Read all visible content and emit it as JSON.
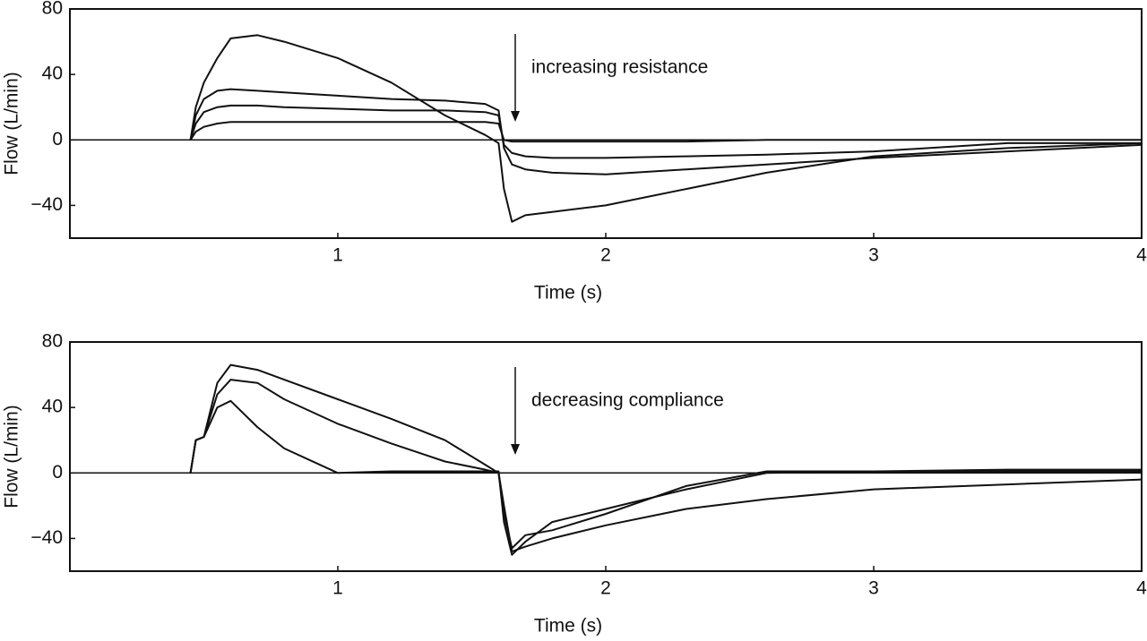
{
  "chart_data": [
    {
      "type": "line",
      "xlabel": "Time (s)",
      "ylabel": "Flow (L/min)",
      "annotation": "increasing resistance",
      "zero_line": true,
      "x": [
        0.45,
        0.47,
        0.5,
        0.55,
        0.6,
        0.7,
        0.8,
        1.0,
        1.2,
        1.4,
        1.55,
        1.6,
        1.62,
        1.65,
        1.7,
        1.8,
        2.0,
        2.3,
        2.6,
        3.0,
        3.5,
        4.0
      ],
      "xlim": [
        0,
        4
      ],
      "xticks": [
        1,
        2,
        3,
        4
      ],
      "ylim": [
        -60,
        80
      ],
      "yticks": [
        80,
        40,
        0,
        {
          "value": -40,
          "label": "−40"
        }
      ],
      "series": [
        {
          "color": "#111111",
          "values": [
            0,
            20,
            35,
            50,
            62,
            64,
            60,
            50,
            35,
            15,
            3,
            -2,
            -30,
            -50,
            -46,
            -44,
            -40,
            -30,
            -20,
            -10,
            -5,
            -2
          ]
        },
        {
          "color": "#111111",
          "values": [
            0,
            15,
            25,
            30,
            31,
            30,
            29,
            27,
            25,
            24,
            22,
            18,
            -5,
            -15,
            -18,
            -20,
            -21,
            -18,
            -15,
            -11,
            -7,
            -3
          ]
        },
        {
          "color": "#111111",
          "values": [
            0,
            10,
            17,
            20,
            21,
            21,
            20,
            19,
            18,
            18,
            17,
            15,
            -3,
            -8,
            -10,
            -11,
            -11,
            -10,
            -9,
            -7,
            -2,
            -2
          ]
        },
        {
          "color": "#111111",
          "values": [
            0,
            5,
            8,
            10,
            11,
            11,
            11,
            11,
            11,
            11,
            11,
            10,
            0,
            -1,
            -1,
            -1,
            -1,
            -1,
            0,
            0,
            0,
            0
          ]
        }
      ]
    },
    {
      "type": "line",
      "xlabel": "Time (s)",
      "ylabel": "Flow (L/min)",
      "annotation": "decreasing compliance",
      "zero_line": true,
      "x": [
        0.45,
        0.47,
        0.5,
        0.55,
        0.6,
        0.7,
        0.8,
        1.0,
        1.2,
        1.4,
        1.55,
        1.6,
        1.62,
        1.65,
        1.7,
        1.8,
        2.0,
        2.3,
        2.6,
        3.0,
        3.5,
        4.0
      ],
      "xlim": [
        0,
        4
      ],
      "xticks": [
        1,
        2,
        3,
        4
      ],
      "ylim": [
        -60,
        80
      ],
      "yticks": [
        80,
        40,
        0,
        {
          "value": -40,
          "label": "−40"
        }
      ],
      "series": [
        {
          "color": "#111111",
          "values": [
            0,
            20,
            22,
            55,
            66,
            63,
            57,
            45,
            33,
            20,
            5,
            0,
            -20,
            -48,
            -45,
            -40,
            -32,
            -22,
            -16,
            -10,
            -7,
            -4
          ]
        },
        {
          "color": "#111111",
          "values": [
            0,
            20,
            22,
            48,
            57,
            55,
            45,
            30,
            18,
            7,
            2,
            0,
            -25,
            -46,
            -38,
            -35,
            -25,
            -8,
            1,
            1,
            2,
            2
          ]
        },
        {
          "color": "#111111",
          "values": [
            0,
            20,
            22,
            40,
            44,
            28,
            15,
            0,
            1,
            1,
            1,
            1,
            -30,
            -50,
            -42,
            -30,
            -22,
            -10,
            0,
            1,
            1,
            1
          ]
        }
      ]
    }
  ]
}
